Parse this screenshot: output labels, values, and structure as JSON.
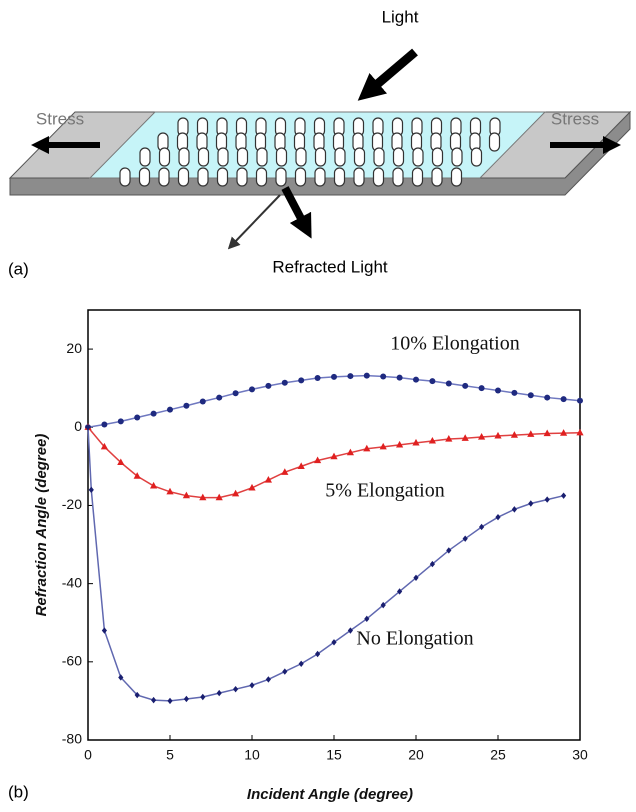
{
  "diagram": {
    "light": "Light",
    "stress_left": "Stress",
    "stress_right": "Stress",
    "refracted": "Refracted Light",
    "panel_label": "(a)"
  },
  "chart_data": {
    "type": "line",
    "panel_label": "(b)",
    "x_label": "Incident Angle (degree)",
    "y_label": "Refraction Angle (degree)",
    "xlim": [
      0,
      30
    ],
    "ylim": [
      -80,
      30
    ],
    "xticks": [
      0,
      5,
      10,
      15,
      20,
      25,
      30
    ],
    "yticks": [
      -80,
      -60,
      -40,
      -20,
      0,
      20
    ],
    "grid": false,
    "series": [
      {
        "name": "10% Elongation",
        "color": "#1f2a80",
        "line_color": "#6f78c0",
        "marker": "circle",
        "x": [
          0,
          1,
          2,
          3,
          4,
          5,
          6,
          7,
          8,
          9,
          10,
          11,
          12,
          13,
          14,
          15,
          16,
          17,
          18,
          19,
          20,
          21,
          22,
          23,
          24,
          25,
          26,
          27,
          28,
          29,
          30
        ],
        "values": [
          0,
          0.7,
          1.5,
          2.5,
          3.5,
          4.5,
          5.5,
          6.6,
          7.6,
          8.7,
          9.7,
          10.6,
          11.4,
          12,
          12.6,
          12.9,
          13.1,
          13.2,
          13,
          12.7,
          12.2,
          11.8,
          11.2,
          10.6,
          10,
          9.4,
          8.8,
          8.2,
          7.6,
          7.2,
          6.8
        ]
      },
      {
        "name": "5% Elongation",
        "color": "#e02020",
        "line_color": "#e04040",
        "marker": "triangle",
        "x": [
          0,
          1,
          2,
          3,
          4,
          5,
          6,
          7,
          8,
          9,
          10,
          11,
          12,
          13,
          14,
          15,
          16,
          17,
          18,
          19,
          20,
          21,
          22,
          23,
          24,
          25,
          26,
          27,
          28,
          29,
          30
        ],
        "values": [
          0,
          -5,
          -9,
          -12.5,
          -15,
          -16.5,
          -17.5,
          -18,
          -18,
          -17,
          -15.5,
          -13.5,
          -11.5,
          -10,
          -8.5,
          -7.5,
          -6.5,
          -5.5,
          -5,
          -4.5,
          -4,
          -3.5,
          -3,
          -2.8,
          -2.5,
          -2.2,
          -2,
          -1.8,
          -1.6,
          -1.5,
          -1.4
        ]
      },
      {
        "name": "No Elongation",
        "color": "#1a1f70",
        "line_color": "#6068b0",
        "marker": "diamond",
        "x": [
          0,
          0.2,
          1,
          2,
          3,
          4,
          5,
          6,
          7,
          8,
          9,
          10,
          11,
          12,
          13,
          14,
          15,
          16,
          17,
          18,
          19,
          20,
          21,
          22,
          23,
          24,
          25,
          26,
          27,
          28,
          29
        ],
        "values": [
          0,
          -16,
          -52,
          -64,
          -68.5,
          -69.8,
          -70,
          -69.5,
          -69,
          -68,
          -67,
          -66,
          -64.5,
          -62.5,
          -60.5,
          -58,
          -55,
          -52,
          -49,
          -45.5,
          -42,
          -38.5,
          -35,
          -31.5,
          -28.5,
          -25.5,
          -23,
          -21,
          -19.5,
          -18.5,
          -17.5
        ]
      }
    ]
  }
}
